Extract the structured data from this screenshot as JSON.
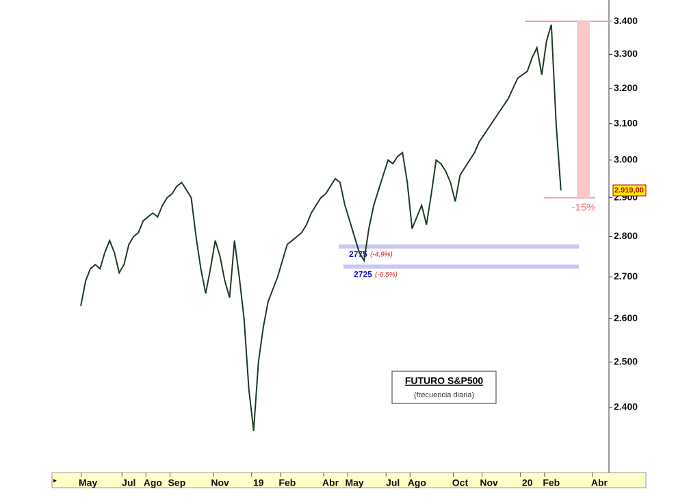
{
  "chart_data": {
    "type": "line",
    "title": "FUTURO S&P500",
    "subtitle": "(frecuencia diaria)",
    "log_scale": true,
    "series": [
      {
        "name": "FUTURO S&P500",
        "color": "#1c3b22",
        "values": [
          2630,
          2690,
          2720,
          2730,
          2720,
          2760,
          2790,
          2760,
          2710,
          2730,
          2780,
          2800,
          2810,
          2840,
          2850,
          2860,
          2850,
          2880,
          2900,
          2910,
          2930,
          2940,
          2920,
          2900,
          2800,
          2720,
          2660,
          2720,
          2790,
          2750,
          2690,
          2650,
          2790,
          2700,
          2600,
          2440,
          2350,
          2500,
          2580,
          2640,
          2670,
          2700,
          2740,
          2780,
          2790,
          2800,
          2810,
          2830,
          2860,
          2880,
          2900,
          2910,
          2930,
          2950,
          2940,
          2880,
          2840,
          2800,
          2760,
          2740,
          2820,
          2880,
          2920,
          2960,
          3000,
          2990,
          3010,
          3020,
          2940,
          2820,
          2850,
          2880,
          2830,
          2910,
          3000,
          2990,
          2970,
          2940,
          2890,
          2960,
          2980,
          3000,
          3020,
          3050,
          3070,
          3090,
          3110,
          3130,
          3150,
          3170,
          3200,
          3230,
          3240,
          3250,
          3290,
          3320,
          3240,
          3340,
          3390,
          3100,
          2919
        ]
      }
    ],
    "xlim": [
      -6,
      110
    ],
    "xticks": [
      {
        "value": 1.5,
        "label": "May"
      },
      {
        "value": 10,
        "label": "Jul"
      },
      {
        "value": 15,
        "label": "Ago"
      },
      {
        "value": 20,
        "label": "Sep"
      },
      {
        "value": 29,
        "label": "Nov"
      },
      {
        "value": 37,
        "label": "19"
      },
      {
        "value": 43,
        "label": "Feb"
      },
      {
        "value": 52,
        "label": "Abr"
      },
      {
        "value": 57,
        "label": "May"
      },
      {
        "value": 65,
        "label": "Jul"
      },
      {
        "value": 70,
        "label": "Ago"
      },
      {
        "value": 79,
        "label": "Oct"
      },
      {
        "value": 85,
        "label": "Nov"
      },
      {
        "value": 93,
        "label": "20"
      },
      {
        "value": 98,
        "label": "Feb"
      },
      {
        "value": 108,
        "label": "Abr"
      }
    ],
    "ylim": [
      2263,
      3466
    ],
    "yticks": [
      {
        "value": 2400,
        "label": "2.400"
      },
      {
        "value": 2500,
        "label": "2.500"
      },
      {
        "value": 2600,
        "label": "2.600"
      },
      {
        "value": 2700,
        "label": "2.700"
      },
      {
        "value": 2800,
        "label": "2.800"
      },
      {
        "value": 2900,
        "label": "2.900"
      },
      {
        "value": 3000,
        "label": "3.000"
      },
      {
        "value": 3100,
        "label": "3.100"
      },
      {
        "value": 3200,
        "label": "3.200"
      },
      {
        "value": 3300,
        "label": "3.300"
      },
      {
        "value": 3400,
        "label": "3.400"
      }
    ],
    "levels": [
      {
        "level": 2725,
        "note": "(-6,5%)"
      },
      {
        "level": 2775,
        "note": "(-4,9%)"
      }
    ],
    "drop": {
      "from": 3400,
      "to": 2900,
      "label": "-15%"
    },
    "last_price": {
      "value": 2919,
      "label": "2.919,00"
    }
  }
}
